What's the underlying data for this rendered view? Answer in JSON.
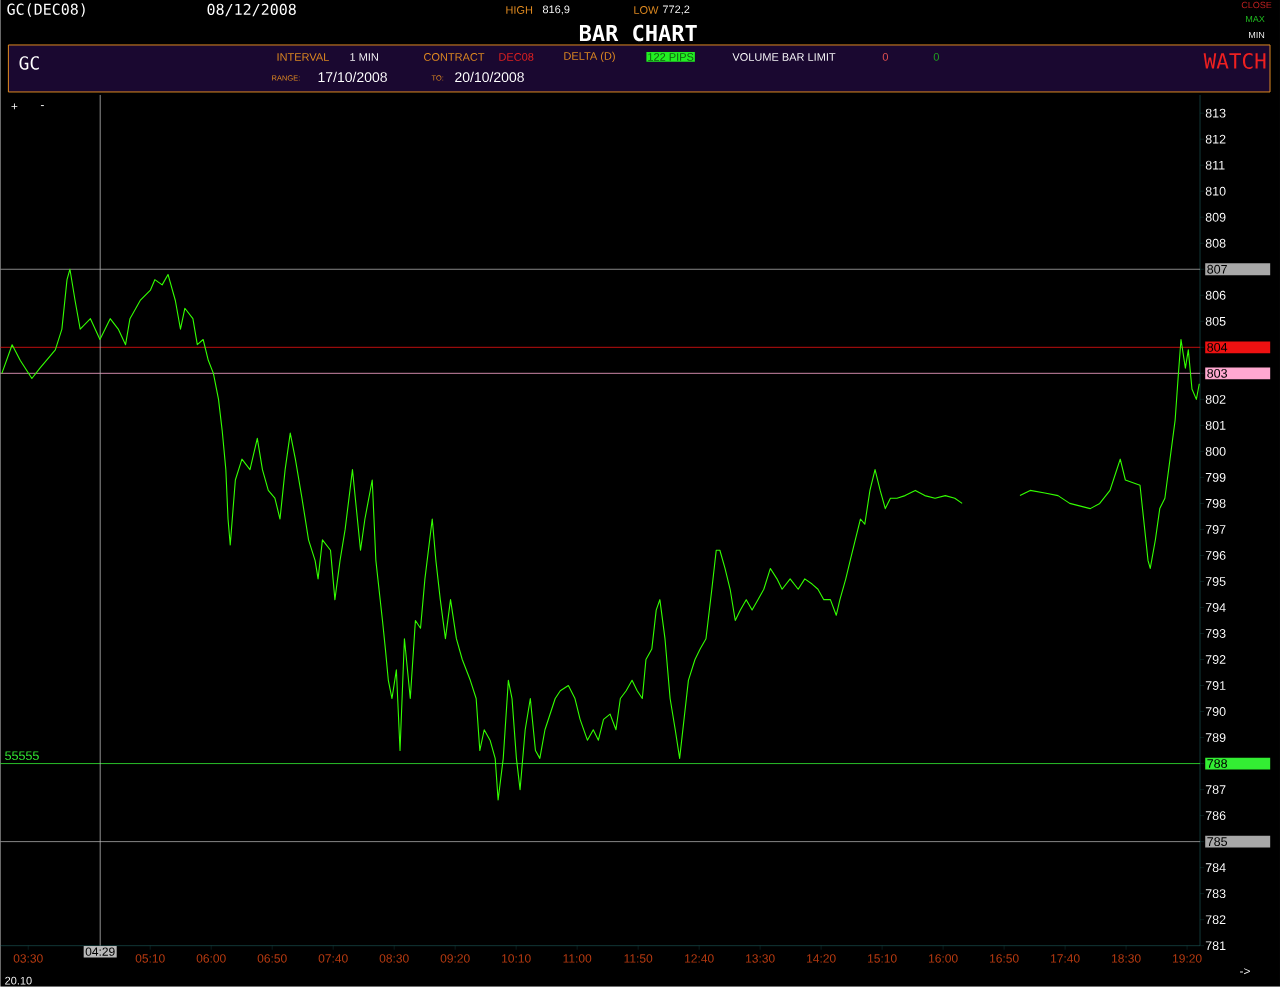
{
  "chart_data": {
    "type": "line",
    "title": "BAR CHART",
    "annotations": [
      "GC(DEC08)",
      "08/12/2008",
      "HIGH",
      "816,9",
      "LOW",
      "772,2",
      "CLOSE",
      "MAX",
      "MIN",
      "GC",
      "INTERVAL",
      "1 MIN",
      "CONTRACT",
      "DEC08",
      "DELTA (D)",
      "122 PIPS",
      "VOLUME BAR LIMIT",
      "0",
      "0",
      "WATCH",
      "RANGE:",
      "17/10/2008",
      "TO:",
      "20/10/2008",
      "+",
      "-",
      "->",
      "20.10",
      "55555"
    ],
    "xlim": [
      3.12,
      19.51
    ],
    "ylim": [
      781,
      813.7
    ],
    "xticks": [
      {
        "value": 3.5,
        "label": "03:30"
      },
      {
        "value": 4.3333,
        "label": null
      },
      {
        "value": 5.1667,
        "label": "05:10"
      },
      {
        "value": 6.0,
        "label": "06:00"
      },
      {
        "value": 6.8333,
        "label": "06:50"
      },
      {
        "value": 7.6667,
        "label": "07:40"
      },
      {
        "value": 8.5,
        "label": "08:30"
      },
      {
        "value": 9.3333,
        "label": "09:20"
      },
      {
        "value": 10.1667,
        "label": "10:10"
      },
      {
        "value": 11.0,
        "label": "11:00"
      },
      {
        "value": 11.8333,
        "label": "11:50"
      },
      {
        "value": 12.6667,
        "label": "12:40"
      },
      {
        "value": 13.5,
        "label": "13:30"
      },
      {
        "value": 14.3333,
        "label": "14:20"
      },
      {
        "value": 15.1667,
        "label": "15:10"
      },
      {
        "value": 16.0,
        "label": "16:00"
      },
      {
        "value": 16.8333,
        "label": "16:50"
      },
      {
        "value": 17.6667,
        "label": "17:40"
      },
      {
        "value": 18.5,
        "label": "18:30"
      },
      {
        "value": 19.3333,
        "label": "19:20"
      }
    ],
    "yticks": [
      781,
      782,
      783,
      784,
      785,
      786,
      787,
      788,
      789,
      790,
      791,
      792,
      793,
      794,
      795,
      796,
      797,
      798,
      799,
      800,
      801,
      802,
      803,
      804,
      805,
      806,
      807,
      808,
      809,
      810,
      811,
      812,
      813
    ],
    "ref_lines": [
      {
        "axis": "y",
        "value": 807,
        "color": "#a8a8a8"
      },
      {
        "axis": "y",
        "value": 804,
        "color": "#ee1111"
      },
      {
        "axis": "y",
        "value": 803,
        "color": "#ffa8d0"
      },
      {
        "axis": "y",
        "value": 788,
        "color": "#33ee33"
      },
      {
        "axis": "y",
        "value": 785,
        "color": "#a8a8a8"
      },
      {
        "axis": "x",
        "value": 4.4833,
        "color": "#b8b8b8",
        "label": "04:29"
      }
    ],
    "marker": "none",
    "line_style": "solid",
    "series": [
      {
        "color": "#33ff00",
        "x": [
          3.14,
          3.28,
          3.39,
          3.55,
          3.66,
          3.87,
          3.96,
          4.03,
          4.07,
          4.14,
          4.21,
          4.35,
          4.48,
          4.62,
          4.73,
          4.83,
          4.89,
          5.03,
          5.17,
          5.23,
          5.33,
          5.41,
          5.51,
          5.58,
          5.64,
          5.75,
          5.81,
          5.89,
          5.96,
          6.03,
          6.1,
          6.15,
          6.2,
          6.23,
          6.26,
          6.33,
          6.42,
          6.53,
          6.63,
          6.7,
          6.78,
          6.87,
          6.94,
          7.01,
          7.08,
          7.15,
          7.24,
          7.33,
          7.42,
          7.46,
          7.52,
          7.63,
          7.69,
          7.76,
          7.83,
          7.93,
          8.04,
          8.1,
          8.2,
          8.25,
          8.34,
          8.38,
          8.42,
          8.47,
          8.53,
          8.58,
          8.64,
          8.72,
          8.79,
          8.86,
          8.92,
          9.02,
          9.07,
          9.13,
          9.2,
          9.27,
          9.35,
          9.43,
          9.54,
          9.62,
          9.67,
          9.73,
          9.81,
          9.88,
          9.92,
          9.99,
          10.06,
          10.11,
          10.17,
          10.22,
          10.29,
          10.36,
          10.43,
          10.49,
          10.56,
          10.7,
          10.77,
          10.88,
          10.97,
          11.04,
          11.14,
          11.22,
          11.29,
          11.36,
          11.45,
          11.53,
          11.59,
          11.67,
          11.75,
          11.82,
          11.89,
          11.94,
          12.02,
          12.08,
          12.13,
          12.2,
          12.27,
          12.34,
          12.4,
          12.46,
          12.52,
          12.61,
          12.68,
          12.76,
          12.84,
          12.9,
          12.95,
          13.02,
          13.09,
          13.16,
          13.23,
          13.31,
          13.39,
          13.47,
          13.55,
          13.64,
          13.73,
          13.8,
          13.91,
          14.02,
          14.11,
          14.21,
          14.29,
          14.37,
          14.46,
          14.54,
          14.59,
          14.67,
          14.73,
          14.8,
          14.87,
          14.93,
          15.0,
          15.07,
          15.14,
          15.21,
          15.28,
          15.37,
          15.48,
          15.62,
          15.75,
          15.89,
          16.03,
          16.16,
          16.26,
          16.6,
          17.05,
          17.19,
          17.39,
          17.57,
          17.73,
          18.01,
          18.14,
          18.28,
          18.35,
          18.42,
          18.49,
          18.69,
          18.8,
          18.83,
          18.9,
          18.96,
          19.03,
          19.1,
          19.17,
          19.21,
          19.25,
          19.31,
          19.35,
          19.4,
          19.46,
          19.5
        ],
        "values": [
          803.0,
          804.1,
          803.5,
          802.8,
          803.2,
          803.9,
          804.7,
          806.6,
          807.0,
          805.8,
          804.7,
          805.1,
          804.3,
          805.1,
          804.7,
          804.1,
          805.1,
          805.8,
          806.2,
          806.6,
          806.4,
          806.8,
          805.8,
          804.7,
          805.5,
          805.1,
          804.1,
          804.3,
          803.5,
          803.0,
          802.0,
          800.8,
          799.3,
          797.4,
          796.4,
          798.9,
          799.7,
          799.3,
          800.5,
          799.3,
          798.5,
          798.2,
          797.4,
          799.3,
          800.7,
          799.7,
          798.2,
          796.6,
          795.8,
          795.1,
          796.6,
          796.2,
          794.3,
          795.8,
          797.0,
          799.3,
          796.2,
          797.4,
          798.9,
          795.8,
          793.5,
          792.4,
          791.2,
          790.5,
          791.6,
          788.5,
          792.8,
          790.5,
          793.5,
          793.2,
          795.1,
          797.4,
          795.8,
          794.3,
          792.8,
          794.3,
          792.8,
          792.0,
          791.2,
          790.5,
          788.5,
          789.3,
          788.9,
          788.2,
          786.6,
          788.2,
          791.2,
          790.5,
          788.2,
          787.0,
          789.3,
          790.5,
          788.5,
          788.2,
          789.3,
          790.5,
          790.8,
          791.0,
          790.5,
          789.7,
          788.9,
          789.3,
          788.9,
          789.7,
          789.9,
          789.3,
          790.5,
          790.8,
          791.2,
          790.8,
          790.5,
          792.0,
          792.4,
          793.9,
          794.3,
          792.8,
          790.5,
          789.3,
          788.2,
          789.7,
          791.2,
          792.0,
          792.4,
          792.8,
          794.7,
          796.2,
          796.2,
          795.5,
          794.7,
          793.5,
          793.9,
          794.3,
          793.9,
          794.3,
          794.7,
          795.5,
          795.1,
          794.7,
          795.1,
          794.7,
          795.1,
          794.9,
          794.7,
          794.3,
          794.3,
          793.7,
          794.3,
          795.1,
          795.8,
          796.6,
          797.4,
          797.2,
          798.5,
          799.3,
          798.5,
          797.8,
          798.2,
          798.2,
          798.3,
          798.5,
          798.3,
          798.2,
          798.3,
          798.2,
          798.0,
          null,
          798.3,
          798.5,
          798.4,
          798.3,
          798.0,
          797.8,
          798.0,
          798.5,
          799.1,
          799.7,
          798.9,
          798.7,
          795.8,
          795.5,
          796.6,
          797.8,
          798.2,
          799.7,
          801.2,
          802.8,
          804.3,
          803.2,
          803.9,
          802.4,
          802.0,
          802.6
        ]
      }
    ]
  }
}
